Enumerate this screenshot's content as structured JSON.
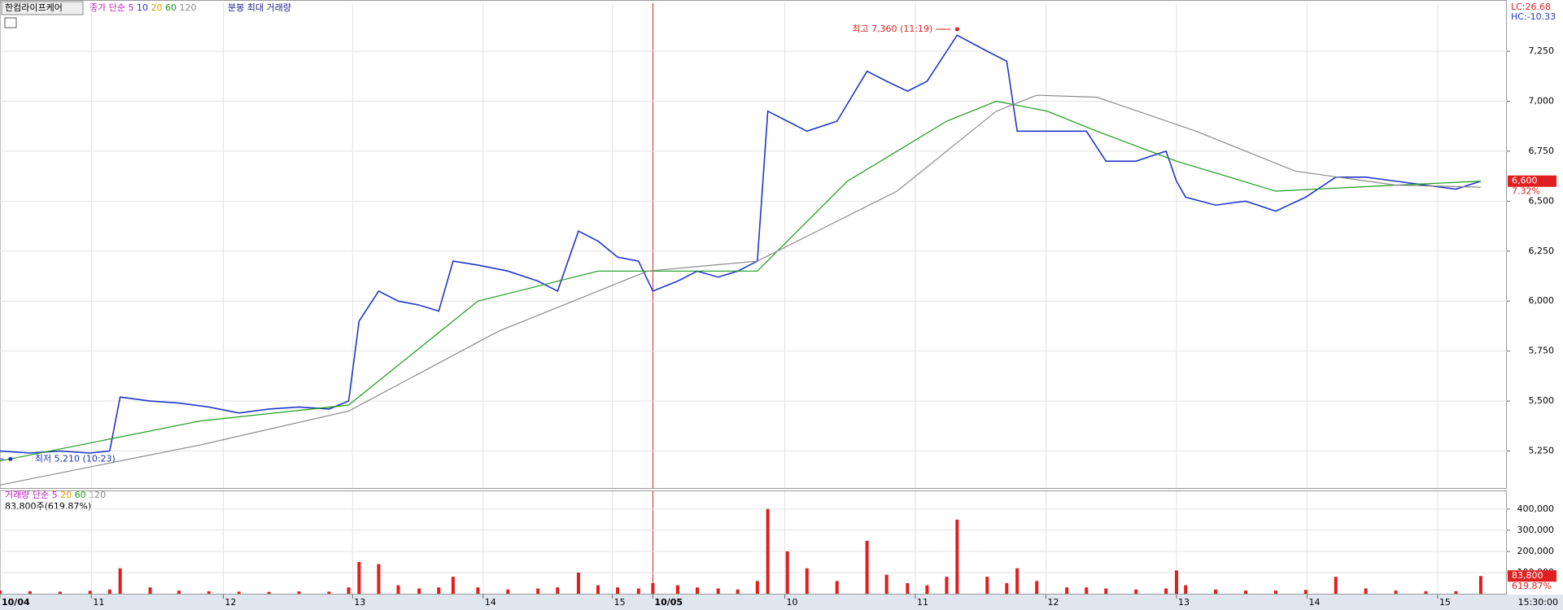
{
  "header": {
    "stock_name": "한컴라이프케어",
    "price_legend_title": "종가 단순",
    "price_legend_periods": [
      "5",
      "10",
      "20",
      "60",
      "120"
    ],
    "minute_label": "분봉 최대 거래량",
    "lc_label": "LC:26.68",
    "hc_label": "HC:-10.33"
  },
  "chart_data": [
    {
      "type": "line",
      "xlim": [
        0,
        11.54
      ],
      "xticks": [
        {
          "value": 0,
          "label": "10/04"
        },
        {
          "value": 0.7,
          "label": "11"
        },
        {
          "value": 1.71,
          "label": "12"
        },
        {
          "value": 2.7,
          "label": "13"
        },
        {
          "value": 3.7,
          "label": "14"
        },
        {
          "value": 4.69,
          "label": "15"
        },
        {
          "value": 5.0,
          "label": "10/05"
        },
        {
          "value": 6.01,
          "label": "10"
        },
        {
          "value": 7.01,
          "label": "11"
        },
        {
          "value": 8.01,
          "label": "12"
        },
        {
          "value": 9.01,
          "label": "13"
        },
        {
          "value": 10.01,
          "label": "14"
        },
        {
          "value": 11.01,
          "label": "15"
        }
      ],
      "ylim": [
        5065,
        7490
      ],
      "yticks": [
        {
          "value": 5250,
          "label": "5,250"
        },
        {
          "value": 5500,
          "label": "5,500"
        },
        {
          "value": 5750,
          "label": "5,750"
        },
        {
          "value": 6000,
          "label": "6,000"
        },
        {
          "value": 6250,
          "label": "6,250"
        },
        {
          "value": 6500,
          "label": "6,500"
        },
        {
          "value": 6750,
          "label": "6,750"
        },
        {
          "value": 7000,
          "label": "7,000"
        },
        {
          "value": 7250,
          "label": "7,250"
        }
      ],
      "grid": true,
      "series": [
        {
          "color": "#2038c8",
          "x": [
            0,
            0.23,
            0.46,
            0.69,
            0.84,
            0.92,
            1.15,
            1.37,
            1.6,
            1.83,
            2.06,
            2.29,
            2.52,
            2.67,
            2.75,
            2.9,
            3.05,
            3.21,
            3.36,
            3.47,
            3.66,
            3.89,
            4.12,
            4.27,
            4.43,
            4.58,
            4.73,
            4.89,
            5.0,
            5.19,
            5.34,
            5.5,
            5.65,
            5.8,
            5.88,
            6.03,
            6.18,
            6.41,
            6.64,
            6.79,
            6.95,
            7.1,
            7.25,
            7.33,
            7.56,
            7.71,
            7.79,
            7.94,
            8.17,
            8.32,
            8.47,
            8.7,
            8.93,
            9.01,
            9.08,
            9.31,
            9.54,
            9.77,
            10.0,
            10.23,
            10.46,
            10.69,
            10.92,
            11.15,
            11.34
          ],
          "values": [
            5250,
            5240,
            5250,
            5240,
            5250,
            5520,
            5500,
            5490,
            5470,
            5440,
            5460,
            5470,
            5460,
            5500,
            5900,
            6050,
            6000,
            5980,
            5950,
            6200,
            6180,
            6150,
            6100,
            6050,
            6350,
            6300,
            6220,
            6200,
            6050,
            6100,
            6150,
            6120,
            6150,
            6200,
            6950,
            6900,
            6850,
            6900,
            7150,
            7100,
            7050,
            7100,
            7250,
            7330,
            7250,
            7200,
            6850,
            6850,
            6850,
            6850,
            6700,
            6700,
            6750,
            6600,
            6520,
            6480,
            6500,
            6450,
            6520,
            6620,
            6620,
            6600,
            6580,
            6560,
            6600
          ]
        },
        {
          "color": "#1a9a1a",
          "x": [
            0,
            1.53,
            2.67,
            3.66,
            4.58,
            5.8,
            6.49,
            7.25,
            7.63,
            8.02,
            8.4,
            9.01,
            9.77,
            10.69,
            11.34
          ],
          "values": [
            5200,
            5400,
            5480,
            6000,
            6150,
            6150,
            6600,
            6900,
            7000,
            6950,
            6850,
            6700,
            6550,
            6580,
            6600
          ]
        },
        {
          "color": "#8a8a8a",
          "x": [
            0,
            1.53,
            2.67,
            3.82,
            4.96,
            5.8,
            6.87,
            7.63,
            7.94,
            8.4,
            9.16,
            9.92,
            10.69,
            11.34
          ],
          "values": [
            5080,
            5280,
            5450,
            5850,
            6150,
            6200,
            6550,
            6950,
            7030,
            7020,
            6850,
            6650,
            6580,
            6570
          ]
        }
      ],
      "annotations": [
        {
          "text": "최고 7,360 (11:19)",
          "x": 7.33,
          "y": 7360,
          "color": "#e02020"
        },
        {
          "text": "최저 5,210 (10:23)",
          "x": 0.08,
          "y": 5210,
          "color": "#2030c0"
        }
      ],
      "last_value_label": "6,600",
      "change_label": "7.32%",
      "label_color": "#e02020"
    },
    {
      "type": "bar",
      "title": "거래량",
      "legend_title": "단순",
      "legend_periods": [
        "5",
        "20",
        "60",
        "120"
      ],
      "info": "83,800주(619.87%)",
      "xlim": [
        0,
        11.54
      ],
      "xticks": [
        {
          "value": 0,
          "label": "10/04"
        },
        {
          "value": 0.7,
          "label": "11"
        },
        {
          "value": 1.71,
          "label": "12"
        },
        {
          "value": 2.7,
          "label": "13"
        },
        {
          "value": 3.7,
          "label": "14"
        },
        {
          "value": 4.69,
          "label": "15"
        },
        {
          "value": 5.0,
          "label": "10/05"
        },
        {
          "value": 6.01,
          "label": "10"
        },
        {
          "value": 7.01,
          "label": "11"
        },
        {
          "value": 8.01,
          "label": "12"
        },
        {
          "value": 9.01,
          "label": "13"
        },
        {
          "value": 10.01,
          "label": "14"
        },
        {
          "value": 11.01,
          "label": "15"
        }
      ],
      "ylim": [
        0,
        484000
      ],
      "yticks": [
        {
          "value": 100000,
          "label": "100,000"
        },
        {
          "value": 200000,
          "label": "200,000"
        },
        {
          "value": 300000,
          "label": "300,000"
        },
        {
          "value": 400000,
          "label": "400,000"
        }
      ],
      "grid": true,
      "color": "#e01e1e",
      "x": [
        0,
        0.23,
        0.46,
        0.69,
        0.84,
        0.92,
        1.15,
        1.37,
        1.6,
        1.83,
        2.06,
        2.29,
        2.52,
        2.67,
        2.75,
        2.9,
        3.05,
        3.21,
        3.36,
        3.47,
        3.66,
        3.89,
        4.12,
        4.27,
        4.43,
        4.58,
        4.73,
        4.89,
        5.0,
        5.19,
        5.34,
        5.5,
        5.65,
        5.8,
        5.88,
        6.03,
        6.18,
        6.41,
        6.64,
        6.79,
        6.95,
        7.1,
        7.25,
        7.33,
        7.56,
        7.71,
        7.79,
        7.94,
        8.17,
        8.32,
        8.47,
        8.7,
        8.93,
        9.01,
        9.08,
        9.31,
        9.54,
        9.77,
        10.0,
        10.23,
        10.46,
        10.69,
        10.92,
        11.15,
        11.34
      ],
      "values": [
        15000,
        12000,
        10000,
        14000,
        20000,
        120000,
        30000,
        15000,
        12000,
        10000,
        9000,
        11000,
        10000,
        30000,
        150000,
        140000,
        40000,
        25000,
        30000,
        80000,
        30000,
        20000,
        25000,
        30000,
        100000,
        40000,
        30000,
        25000,
        50000,
        40000,
        30000,
        25000,
        20000,
        60000,
        400000,
        200000,
        120000,
        60000,
        250000,
        90000,
        50000,
        40000,
        80000,
        350000,
        80000,
        50000,
        120000,
        60000,
        30000,
        30000,
        25000,
        20000,
        25000,
        110000,
        40000,
        20000,
        15000,
        15000,
        18000,
        80000,
        25000,
        15000,
        12000,
        12000,
        83800
      ],
      "last_value_label": "83,800",
      "ratio_label": "619.87%",
      "label_color": "#e02020"
    }
  ],
  "footer": {
    "time_label": "15:30:00"
  }
}
